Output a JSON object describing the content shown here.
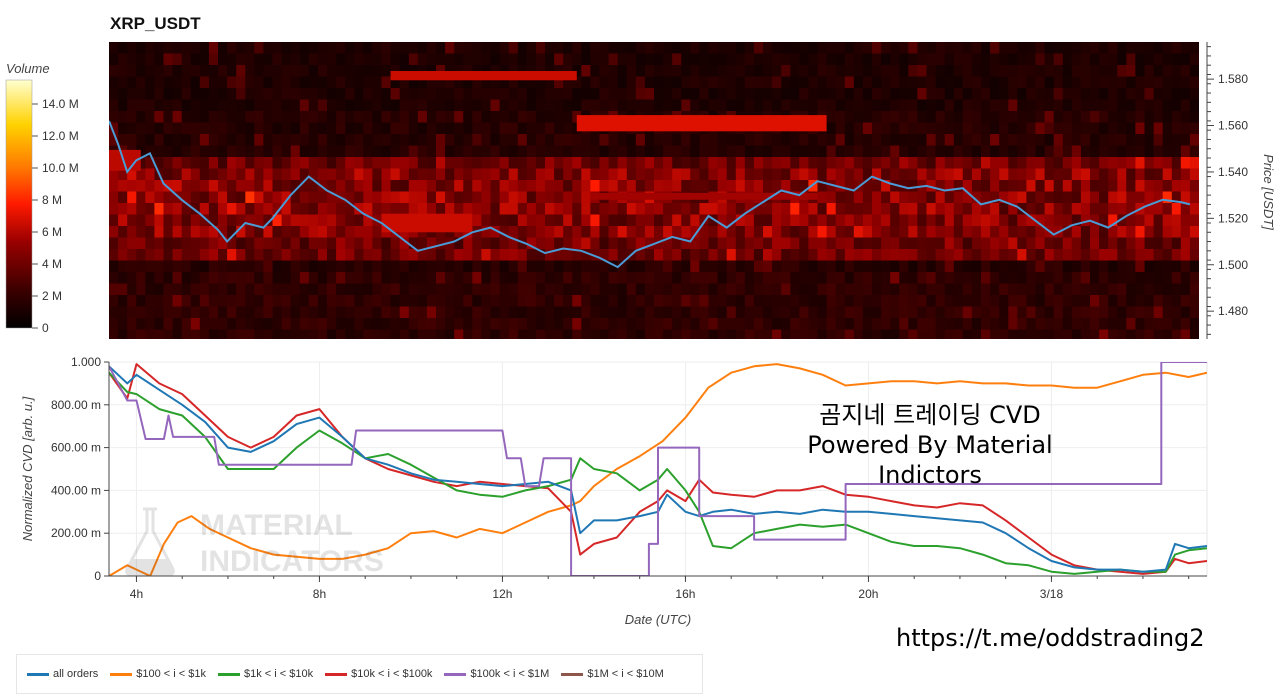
{
  "title": "XRP_USDT",
  "overlay": {
    "line1": "곰지네 트레이딩 CVD",
    "line2": "Powered By Material Indictors"
  },
  "url": "https://t.me/oddstrading2",
  "watermark": {
    "line1": "MATERIAL",
    "line2": "INDICATORS"
  },
  "colors": {
    "price_line": "#4a9bd6",
    "all_orders": "#1f77b4",
    "s100_1k": "#ff7f0e",
    "s1k_10k": "#2ca02c",
    "s10k_100k": "#d62728",
    "s100k_1m": "#9467bd",
    "s1m_10m": "#8c564b"
  },
  "chart_data": [
    {
      "type": "heatmap",
      "title": "XRP_USDT",
      "ylabel": "Price [USDT]",
      "ylim": [
        1.468,
        1.596
      ],
      "yticks": [
        "1.480",
        "1.500",
        "1.520",
        "1.540",
        "1.560",
        "1.580"
      ],
      "yticks_values": [
        1.48,
        1.5,
        1.52,
        1.54,
        1.56,
        1.58
      ],
      "colorbar": {
        "label": "Volume",
        "ticks": [
          "0",
          "2 M",
          "4 M",
          "6 M",
          "8 M",
          "10.0 M",
          "12.0 M",
          "14.0 M"
        ],
        "tick_values": [
          0,
          2,
          4,
          6,
          8,
          10,
          12,
          14
        ],
        "max": 15.5
      },
      "price_series": {
        "name": "price",
        "x_hours": [
          3.4,
          3.6,
          3.8,
          4.0,
          4.3,
          4.6,
          5.0,
          5.4,
          5.8,
          6.0,
          6.4,
          6.8,
          7.0,
          7.4,
          7.8,
          8.2,
          8.6,
          9.0,
          9.4,
          9.8,
          10.2,
          10.6,
          11.0,
          11.4,
          11.8,
          12.2,
          12.6,
          13.0,
          13.4,
          13.8,
          14.2,
          14.6,
          15.0,
          15.4,
          15.8,
          16.2,
          16.6,
          17.0,
          17.4,
          17.8,
          18.2,
          18.6,
          19.0,
          19.4,
          19.8,
          20.2,
          20.6,
          21.0,
          21.4,
          21.8,
          22.2,
          22.6,
          23.0,
          23.4,
          23.8,
          24.2,
          24.6,
          25.0,
          25.4,
          25.8,
          26.2,
          26.6,
          27.0,
          27.2
        ],
        "values": [
          1.562,
          1.552,
          1.54,
          1.545,
          1.548,
          1.535,
          1.528,
          1.522,
          1.515,
          1.51,
          1.518,
          1.516,
          1.52,
          1.53,
          1.538,
          1.532,
          1.528,
          1.522,
          1.518,
          1.512,
          1.506,
          1.508,
          1.51,
          1.514,
          1.516,
          1.512,
          1.509,
          1.505,
          1.507,
          1.506,
          1.503,
          1.499,
          1.506,
          1.509,
          1.512,
          1.51,
          1.521,
          1.516,
          1.522,
          1.527,
          1.532,
          1.53,
          1.536,
          1.534,
          1.532,
          1.538,
          1.535,
          1.533,
          1.534,
          1.532,
          1.533,
          1.526,
          1.528,
          1.525,
          1.519,
          1.513,
          1.517,
          1.519,
          1.516,
          1.521,
          1.525,
          1.528,
          1.527,
          1.526
        ]
      }
    },
    {
      "type": "line",
      "xlabel": "Date (UTC)",
      "ylabel": "Normalized CVD [arb. u.]",
      "ylim": [
        0,
        1.0
      ],
      "yticks": [
        "0",
        "200.00 m",
        "400.00 m",
        "600.00 m",
        "800.00 m",
        "1.000"
      ],
      "yticks_values": [
        0,
        0.2,
        0.4,
        0.6,
        0.8,
        1.0
      ],
      "xticks": [
        "4h",
        "8h",
        "12h",
        "16h",
        "20h",
        "3/18"
      ],
      "xticks_values_hours": [
        4,
        8,
        12,
        16,
        20,
        24
      ],
      "xlim_hours": [
        3.4,
        27.4
      ],
      "series": [
        {
          "name": "all orders",
          "x_hours": [
            3.4,
            3.8,
            4.0,
            4.5,
            5.0,
            5.5,
            6.0,
            6.5,
            7.0,
            7.5,
            8.0,
            8.5,
            9.0,
            9.5,
            10.0,
            10.5,
            11.0,
            11.5,
            12.0,
            12.5,
            13.0,
            13.5,
            13.7,
            14.0,
            14.5,
            15.0,
            15.4,
            15.6,
            16.0,
            16.3,
            16.6,
            17.0,
            17.5,
            18.0,
            18.5,
            19.0,
            19.5,
            20.0,
            20.5,
            21.0,
            21.5,
            22.0,
            22.5,
            23.0,
            23.5,
            24.0,
            24.5,
            25.0,
            25.5,
            26.0,
            26.5,
            26.7,
            27.0,
            27.4
          ],
          "values": [
            0.98,
            0.9,
            0.94,
            0.87,
            0.8,
            0.72,
            0.6,
            0.58,
            0.63,
            0.71,
            0.74,
            0.65,
            0.55,
            0.52,
            0.48,
            0.45,
            0.44,
            0.43,
            0.42,
            0.43,
            0.44,
            0.4,
            0.2,
            0.26,
            0.26,
            0.28,
            0.3,
            0.38,
            0.3,
            0.28,
            0.3,
            0.31,
            0.29,
            0.3,
            0.29,
            0.31,
            0.3,
            0.3,
            0.29,
            0.28,
            0.27,
            0.26,
            0.25,
            0.2,
            0.13,
            0.07,
            0.04,
            0.03,
            0.03,
            0.02,
            0.03,
            0.15,
            0.13,
            0.14
          ]
        },
        {
          "name": "$100 < i < $1k",
          "x_hours": [
            3.4,
            3.8,
            4.0,
            4.3,
            4.6,
            4.9,
            5.2,
            5.6,
            6.0,
            6.5,
            7.0,
            7.5,
            8.0,
            8.5,
            9.0,
            9.5,
            10.0,
            10.5,
            11.0,
            11.5,
            12.0,
            12.5,
            13.0,
            13.5,
            13.7,
            14.0,
            14.5,
            15.0,
            15.5,
            16.0,
            16.5,
            17.0,
            17.5,
            18.0,
            18.5,
            19.0,
            19.5,
            20.0,
            20.5,
            21.0,
            21.5,
            22.0,
            22.5,
            23.0,
            23.5,
            24.0,
            24.5,
            25.0,
            25.5,
            26.0,
            26.5,
            27.0,
            27.4
          ],
          "values": [
            0.0,
            0.05,
            0.03,
            0.0,
            0.15,
            0.25,
            0.28,
            0.22,
            0.18,
            0.13,
            0.1,
            0.09,
            0.08,
            0.08,
            0.1,
            0.13,
            0.2,
            0.21,
            0.18,
            0.22,
            0.2,
            0.25,
            0.3,
            0.33,
            0.35,
            0.42,
            0.5,
            0.56,
            0.63,
            0.74,
            0.88,
            0.95,
            0.98,
            0.99,
            0.97,
            0.94,
            0.89,
            0.9,
            0.91,
            0.91,
            0.9,
            0.91,
            0.9,
            0.9,
            0.89,
            0.89,
            0.88,
            0.88,
            0.91,
            0.94,
            0.95,
            0.93,
            0.95
          ]
        },
        {
          "name": "$1k < i < $10k",
          "x_hours": [
            3.4,
            3.8,
            4.0,
            4.5,
            5.0,
            5.5,
            6.0,
            6.5,
            7.0,
            7.5,
            8.0,
            8.5,
            9.0,
            9.5,
            10.0,
            10.5,
            11.0,
            11.5,
            12.0,
            12.5,
            13.0,
            13.5,
            13.7,
            14.0,
            14.5,
            15.0,
            15.4,
            15.6,
            16.0,
            16.3,
            16.6,
            17.0,
            17.5,
            18.0,
            18.5,
            19.0,
            19.5,
            20.0,
            20.5,
            21.0,
            21.5,
            22.0,
            22.5,
            23.0,
            23.5,
            24.0,
            24.5,
            25.0,
            25.5,
            26.0,
            26.5,
            26.7,
            27.0,
            27.4
          ],
          "values": [
            0.95,
            0.86,
            0.85,
            0.78,
            0.75,
            0.65,
            0.5,
            0.5,
            0.5,
            0.6,
            0.68,
            0.62,
            0.55,
            0.57,
            0.52,
            0.46,
            0.4,
            0.38,
            0.37,
            0.4,
            0.42,
            0.45,
            0.55,
            0.5,
            0.48,
            0.4,
            0.45,
            0.5,
            0.4,
            0.3,
            0.14,
            0.13,
            0.2,
            0.22,
            0.24,
            0.23,
            0.24,
            0.2,
            0.16,
            0.14,
            0.14,
            0.13,
            0.1,
            0.06,
            0.05,
            0.02,
            0.01,
            0.02,
            0.03,
            0.02,
            0.02,
            0.1,
            0.12,
            0.13
          ]
        },
        {
          "name": "$10k < i < $100k",
          "x_hours": [
            3.4,
            3.8,
            4.0,
            4.5,
            5.0,
            5.5,
            6.0,
            6.5,
            7.0,
            7.5,
            8.0,
            8.5,
            9.0,
            9.5,
            10.0,
            10.5,
            11.0,
            11.5,
            12.0,
            12.5,
            13.0,
            13.5,
            13.7,
            14.0,
            14.5,
            15.0,
            15.4,
            15.6,
            16.0,
            16.3,
            16.6,
            17.0,
            17.5,
            18.0,
            18.5,
            19.0,
            19.5,
            20.0,
            20.5,
            21.0,
            21.5,
            22.0,
            22.5,
            23.0,
            23.5,
            24.0,
            24.5,
            25.0,
            25.5,
            26.0,
            26.5,
            26.7,
            27.0,
            27.4
          ],
          "values": [
            0.95,
            0.83,
            0.99,
            0.9,
            0.85,
            0.75,
            0.65,
            0.6,
            0.65,
            0.75,
            0.78,
            0.65,
            0.55,
            0.5,
            0.47,
            0.44,
            0.42,
            0.44,
            0.43,
            0.42,
            0.41,
            0.3,
            0.1,
            0.15,
            0.18,
            0.3,
            0.35,
            0.4,
            0.35,
            0.45,
            0.39,
            0.38,
            0.37,
            0.4,
            0.4,
            0.42,
            0.38,
            0.37,
            0.35,
            0.33,
            0.32,
            0.34,
            0.33,
            0.26,
            0.18,
            0.1,
            0.05,
            0.03,
            0.02,
            0.01,
            0.02,
            0.08,
            0.06,
            0.07
          ]
        },
        {
          "name": "$100k < i < $1M",
          "x_hours": [
            3.4,
            3.8,
            4.0,
            4.2,
            4.6,
            4.7,
            4.8,
            5.7,
            5.8,
            8.7,
            8.8,
            12.0,
            12.1,
            12.4,
            12.5,
            12.8,
            12.9,
            13.5,
            13.5,
            15.2,
            15.2,
            15.4,
            15.4,
            16.3,
            16.3,
            17.5,
            17.5,
            19.5,
            19.5,
            26.4,
            26.4,
            27.4
          ],
          "values": [
            0.98,
            0.82,
            0.82,
            0.64,
            0.64,
            0.75,
            0.65,
            0.65,
            0.52,
            0.52,
            0.68,
            0.68,
            0.55,
            0.55,
            0.42,
            0.42,
            0.55,
            0.55,
            0.0,
            0.0,
            0.15,
            0.15,
            0.6,
            0.6,
            0.28,
            0.28,
            0.17,
            0.17,
            0.43,
            0.43,
            1.0,
            1.0
          ]
        },
        {
          "name": "$1M < i < $10M",
          "x_hours": [],
          "values": []
        }
      ]
    }
  ]
}
